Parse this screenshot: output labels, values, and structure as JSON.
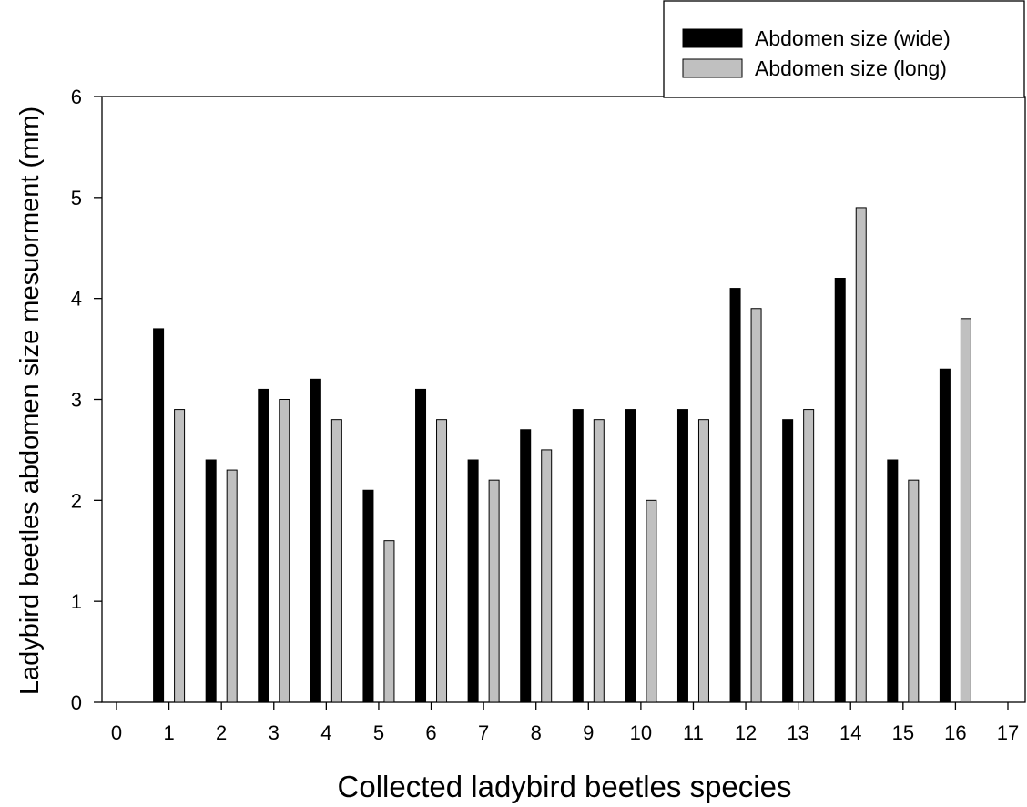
{
  "chart_data": {
    "type": "bar",
    "title": "",
    "xlabel": "Collected ladybird beetles species",
    "ylabel": "Ladybird beetles abdomen size mesuorment (mm)",
    "xlim": [
      0,
      17
    ],
    "ylim": [
      0,
      6
    ],
    "x_ticks": [
      0,
      1,
      2,
      3,
      4,
      5,
      6,
      7,
      8,
      9,
      10,
      11,
      12,
      13,
      14,
      15,
      16,
      17
    ],
    "y_ticks": [
      0,
      1,
      2,
      3,
      4,
      5,
      6
    ],
    "categories": [
      1,
      2,
      3,
      4,
      5,
      6,
      7,
      8,
      9,
      10,
      11,
      12,
      13,
      14,
      15,
      16
    ],
    "series": [
      {
        "name": "Abdomen size (wide)",
        "color": "#000000",
        "values": [
          3.7,
          2.4,
          3.1,
          3.2,
          2.1,
          3.1,
          2.4,
          2.7,
          2.9,
          2.9,
          2.9,
          4.1,
          2.8,
          4.2,
          2.4,
          3.3
        ]
      },
      {
        "name": "Abdomen size (long)",
        "color": "#c0c0c0",
        "values": [
          2.9,
          2.3,
          3.0,
          2.8,
          1.6,
          2.8,
          2.2,
          2.5,
          2.8,
          2.0,
          2.8,
          3.9,
          2.9,
          4.9,
          2.2,
          3.8
        ]
      }
    ],
    "legend_position": "top-right",
    "grid": false
  }
}
